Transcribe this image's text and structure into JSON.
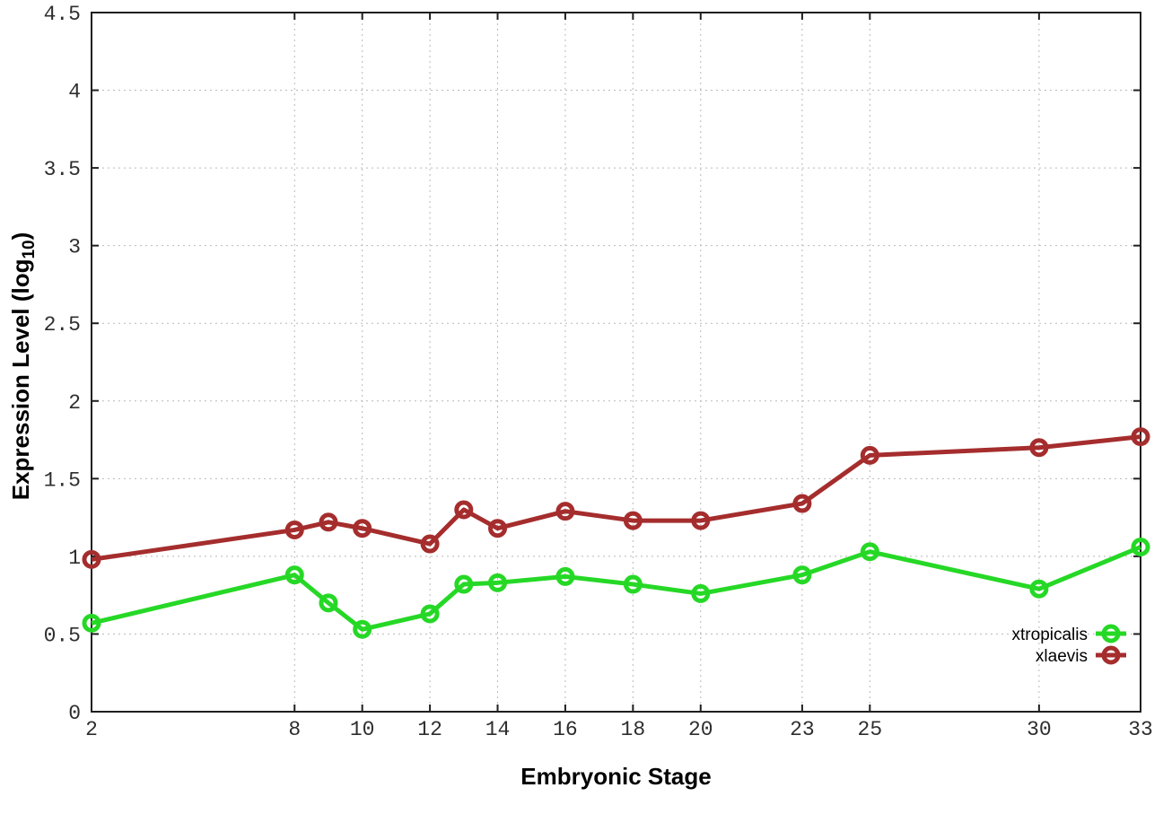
{
  "chart_data": {
    "type": "line",
    "title": "",
    "xlabel": "Embryonic Stage",
    "ylabel": "Expression Level (log10)",
    "ylabel_parts": {
      "main": "Expression Level (log",
      "sub": "10",
      "end": ")"
    },
    "x": [
      2,
      8,
      9,
      10,
      12,
      13,
      14,
      16,
      18,
      20,
      23,
      25,
      30,
      33
    ],
    "series": [
      {
        "name": "xtropicalis",
        "color": "#26d826",
        "values": [
          0.57,
          0.88,
          0.7,
          0.53,
          0.63,
          0.82,
          0.83,
          0.87,
          0.82,
          0.76,
          0.88,
          1.03,
          0.79,
          1.06
        ]
      },
      {
        "name": "xlaevis",
        "color": "#a52d2d",
        "values": [
          0.98,
          1.17,
          1.22,
          1.18,
          1.08,
          1.3,
          1.18,
          1.29,
          1.23,
          1.23,
          1.34,
          1.65,
          1.7,
          1.77
        ]
      }
    ],
    "xlim": [
      2,
      33
    ],
    "ylim": [
      0,
      4.5
    ],
    "xticks": [
      2,
      8,
      10,
      12,
      14,
      16,
      18,
      20,
      23,
      25,
      30,
      33
    ],
    "yticks": [
      0,
      0.5,
      1,
      1.5,
      2,
      2.5,
      3,
      3.5,
      4,
      4.5
    ],
    "ytick_labels": [
      "0",
      "0.5",
      "1",
      "1.5",
      "2",
      "2.5",
      "3",
      "3.5",
      "4",
      "4.5"
    ],
    "grid": true,
    "legend_position": "inside-bottom-right"
  },
  "colors": {
    "background": "#ffffff",
    "border": "#1f1f1f",
    "grid": "#b9b9b9",
    "tick_text": "#2e2e2e",
    "label_text": "#000000"
  }
}
